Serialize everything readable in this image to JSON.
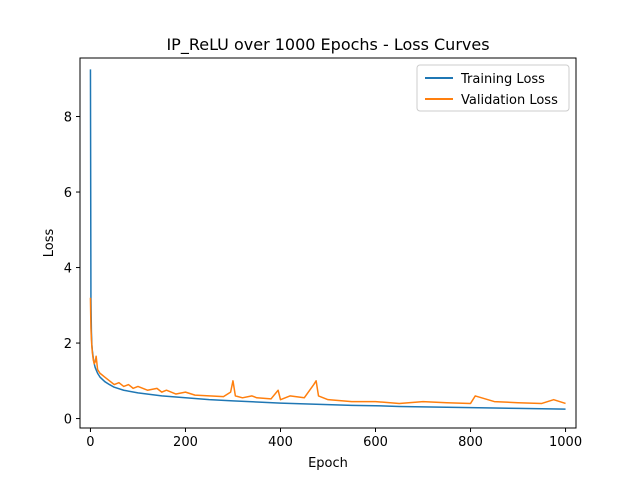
{
  "chart_data": {
    "type": "line",
    "title": "IP_ReLU over 1000 Epochs - Loss Curves",
    "xlabel": "Epoch",
    "ylabel": "Loss",
    "xlim": [
      -22,
      1022
    ],
    "ylim": [
      -0.25,
      9.55
    ],
    "x_ticks": [
      0,
      200,
      400,
      600,
      800,
      1000
    ],
    "y_ticks": [
      0,
      2,
      4,
      6,
      8
    ],
    "grid": false,
    "legend_position": "top-right",
    "series": [
      {
        "name": "Training Loss",
        "color": "#1f77b4",
        "x": [
          0,
          1,
          2,
          3,
          4,
          6,
          8,
          10,
          15,
          20,
          30,
          40,
          50,
          70,
          100,
          150,
          200,
          250,
          300,
          350,
          400,
          450,
          500,
          550,
          600,
          650,
          700,
          750,
          800,
          850,
          900,
          950,
          1000
        ],
        "values": [
          9.25,
          3.2,
          2.3,
          1.95,
          1.8,
          1.6,
          1.45,
          1.35,
          1.2,
          1.1,
          0.98,
          0.9,
          0.83,
          0.75,
          0.68,
          0.6,
          0.55,
          0.5,
          0.47,
          0.44,
          0.41,
          0.39,
          0.37,
          0.35,
          0.34,
          0.32,
          0.31,
          0.3,
          0.29,
          0.28,
          0.27,
          0.26,
          0.25
        ]
      },
      {
        "name": "Validation Loss",
        "color": "#ff7f0e",
        "x": [
          0,
          1,
          2,
          3,
          4,
          6,
          8,
          10,
          12,
          15,
          20,
          25,
          30,
          40,
          50,
          60,
          70,
          80,
          90,
          100,
          120,
          140,
          150,
          160,
          180,
          200,
          220,
          250,
          280,
          295,
          300,
          305,
          320,
          340,
          350,
          380,
          395,
          400,
          420,
          450,
          470,
          475,
          480,
          500,
          550,
          600,
          650,
          700,
          750,
          800,
          810,
          850,
          900,
          950,
          975,
          1000
        ],
        "values": [
          3.2,
          2.4,
          2.1,
          1.9,
          1.75,
          1.55,
          1.45,
          1.5,
          1.65,
          1.3,
          1.2,
          1.15,
          1.1,
          1.0,
          0.9,
          0.95,
          0.85,
          0.9,
          0.8,
          0.85,
          0.75,
          0.8,
          0.7,
          0.75,
          0.65,
          0.7,
          0.62,
          0.6,
          0.58,
          0.7,
          1.0,
          0.6,
          0.55,
          0.6,
          0.55,
          0.52,
          0.75,
          0.5,
          0.6,
          0.55,
          0.9,
          1.0,
          0.6,
          0.5,
          0.45,
          0.45,
          0.4,
          0.45,
          0.42,
          0.4,
          0.6,
          0.45,
          0.42,
          0.4,
          0.5,
          0.4
        ]
      }
    ]
  }
}
